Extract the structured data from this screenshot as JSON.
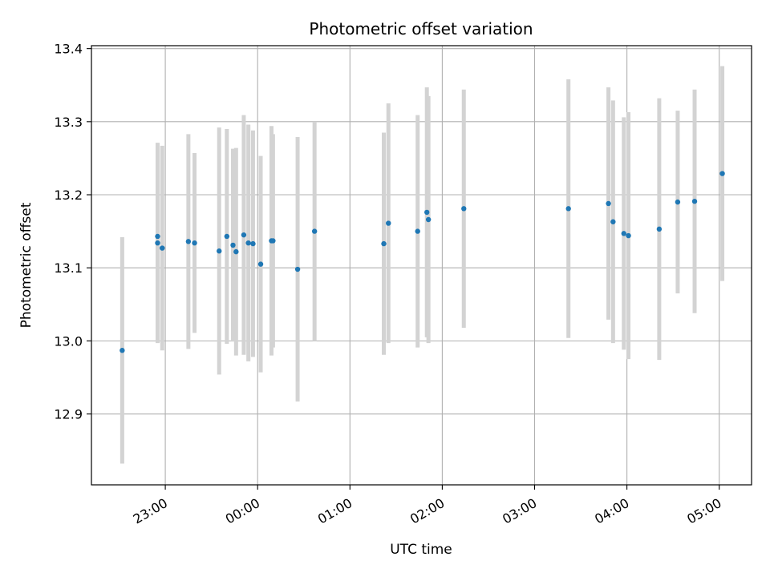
{
  "chart_data": {
    "type": "scatter",
    "title": "Photometric offset variation",
    "xlabel": "UTC time",
    "ylabel": "Photometric offset",
    "x_ticks": [
      "23:00",
      "00:00",
      "01:00",
      "02:00",
      "03:00",
      "04:00",
      "05:00"
    ],
    "y_ticks": [
      "12.9",
      "13.0",
      "13.1",
      "13.2",
      "13.3",
      "13.4"
    ],
    "xlim": [
      "22:12",
      "05:21"
    ],
    "ylim": [
      12.803,
      13.404
    ],
    "grid": true,
    "colors": {
      "point": "#1f77b4",
      "errorbar": "#d3d3d3",
      "grid": "#b0b0b0"
    },
    "points": [
      {
        "x": "22:32",
        "y": 12.987,
        "err": 0.155
      },
      {
        "x": "22:55",
        "y": 13.143,
        "err": 0.128
      },
      {
        "x": "22:55",
        "y": 13.134,
        "err": 0.137
      },
      {
        "x": "22:58",
        "y": 13.127,
        "err": 0.14
      },
      {
        "x": "23:15",
        "y": 13.136,
        "err": 0.147
      },
      {
        "x": "23:19",
        "y": 13.134,
        "err": 0.123
      },
      {
        "x": "23:35",
        "y": 13.123,
        "err": 0.169
      },
      {
        "x": "23:40",
        "y": 13.143,
        "err": 0.147
      },
      {
        "x": "23:44",
        "y": 13.131,
        "err": 0.132
      },
      {
        "x": "23:46",
        "y": 13.122,
        "err": 0.142
      },
      {
        "x": "23:51",
        "y": 13.145,
        "err": 0.164
      },
      {
        "x": "23:54",
        "y": 13.134,
        "err": 0.162
      },
      {
        "x": "23:57",
        "y": 13.133,
        "err": 0.155
      },
      {
        "x": "00:02",
        "y": 13.105,
        "err": 0.148
      },
      {
        "x": "00:09",
        "y": 13.137,
        "err": 0.157
      },
      {
        "x": "00:10",
        "y": 13.137,
        "err": 0.146
      },
      {
        "x": "00:26",
        "y": 13.098,
        "err": 0.181
      },
      {
        "x": "00:37",
        "y": 13.15,
        "err": 0.15
      },
      {
        "x": "01:22",
        "y": 13.133,
        "err": 0.152
      },
      {
        "x": "01:25",
        "y": 13.161,
        "err": 0.164
      },
      {
        "x": "01:44",
        "y": 13.15,
        "err": 0.159
      },
      {
        "x": "01:50",
        "y": 13.176,
        "err": 0.171
      },
      {
        "x": "01:51",
        "y": 13.166,
        "err": 0.169
      },
      {
        "x": "02:14",
        "y": 13.181,
        "err": 0.163
      },
      {
        "x": "03:22",
        "y": 13.181,
        "err": 0.177
      },
      {
        "x": "03:48",
        "y": 13.188,
        "err": 0.159
      },
      {
        "x": "03:51",
        "y": 13.163,
        "err": 0.166
      },
      {
        "x": "03:58",
        "y": 13.147,
        "err": 0.159
      },
      {
        "x": "04:01",
        "y": 13.144,
        "err": 0.169
      },
      {
        "x": "04:21",
        "y": 13.153,
        "err": 0.179
      },
      {
        "x": "04:33",
        "y": 13.19,
        "err": 0.125
      },
      {
        "x": "04:44",
        "y": 13.191,
        "err": 0.153
      },
      {
        "x": "05:02",
        "y": 13.229,
        "err": 0.147
      }
    ]
  }
}
